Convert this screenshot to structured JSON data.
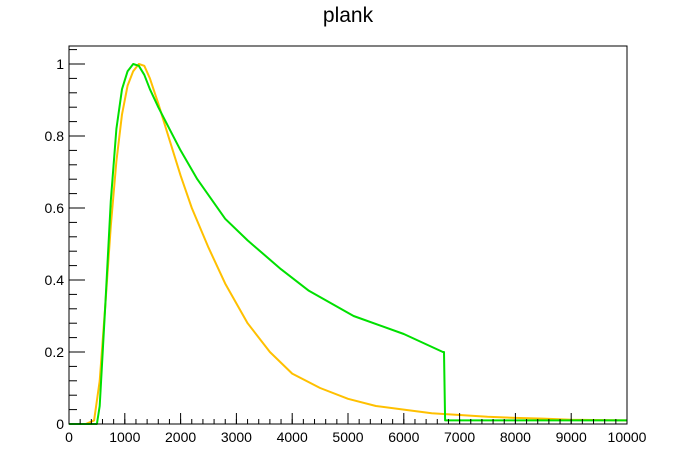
{
  "chart_data": {
    "type": "line",
    "title": "plank",
    "xlabel": "",
    "ylabel": "",
    "xlim": [
      0,
      10000
    ],
    "ylim": [
      0,
      1.05
    ],
    "grid": false,
    "x_ticks": [
      0,
      1000,
      2000,
      3000,
      4000,
      5000,
      6000,
      7000,
      8000,
      9000,
      10000
    ],
    "x_tick_labels": [
      "0",
      "1000",
      "2000",
      "3000",
      "4000",
      "5000",
      "6000",
      "7000",
      "8000",
      "9000",
      "10000"
    ],
    "y_ticks": [
      0,
      0.2,
      0.4,
      0.6,
      0.8,
      1
    ],
    "y_tick_labels": [
      "0",
      "0.2",
      "0.4",
      "0.6",
      "0.8",
      "1"
    ],
    "series": [
      {
        "color": "#ffc000",
        "x": [
          0,
          300,
          450,
          550,
          650,
          750,
          850,
          950,
          1050,
          1150,
          1250,
          1350,
          1450,
          1600,
          1800,
          2000,
          2200,
          2500,
          2800,
          3200,
          3600,
          4000,
          4500,
          5000,
          5500,
          6000,
          6500,
          7000,
          7500,
          8000,
          8500,
          9000,
          10000
        ],
        "y": [
          0.0,
          0.0,
          0.01,
          0.12,
          0.33,
          0.55,
          0.73,
          0.86,
          0.94,
          0.98,
          1.0,
          0.995,
          0.96,
          0.89,
          0.79,
          0.69,
          0.6,
          0.49,
          0.39,
          0.28,
          0.2,
          0.14,
          0.1,
          0.07,
          0.05,
          0.04,
          0.03,
          0.025,
          0.02,
          0.017,
          0.015,
          0.012,
          0.01
        ]
      },
      {
        "color": "#00e000",
        "x": [
          0,
          500,
          550,
          650,
          750,
          850,
          950,
          1050,
          1150,
          1250,
          1350,
          1450,
          1600,
          1800,
          2000,
          2300,
          2800,
          3200,
          3800,
          4300,
          5100,
          6000,
          6700,
          6720,
          6740,
          10000
        ],
        "y": [
          0.0,
          0.0,
          0.05,
          0.33,
          0.62,
          0.82,
          0.93,
          0.98,
          1.0,
          0.995,
          0.97,
          0.93,
          0.88,
          0.82,
          0.76,
          0.68,
          0.57,
          0.51,
          0.43,
          0.37,
          0.3,
          0.25,
          0.2,
          0.2,
          0.01,
          0.01
        ]
      }
    ]
  }
}
